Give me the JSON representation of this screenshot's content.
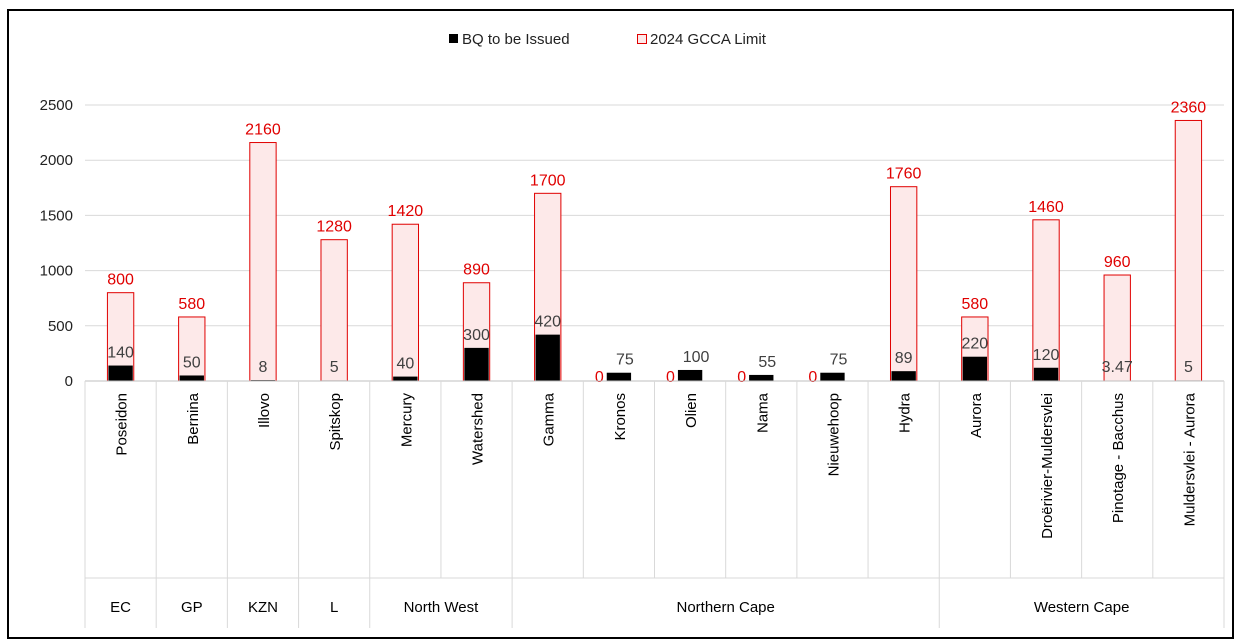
{
  "chart_data": {
    "type": "bar",
    "legend": {
      "position": "top-center",
      "entries": [
        "BQ to be Issued",
        "2024 GCCA  Limit"
      ]
    },
    "ylim": [
      0,
      2500
    ],
    "yticks": [
      "0",
      "500",
      "1000",
      "1500",
      "2000",
      "2500"
    ],
    "grid": true,
    "categories": [
      "Poseidon",
      "Bernina",
      "Illovo",
      "Spitskop",
      "Mercury",
      "Watershed",
      "Gamma",
      "Kronos",
      "Olien",
      "Nama",
      "Nieuwehoop",
      "Hydra",
      "Aurora",
      "Droërivier-Muldersvlei",
      "Pinotage - Bacchus",
      "Muldersvlei - Aurora"
    ],
    "groups": [
      {
        "label": "EC",
        "count": 1
      },
      {
        "label": "GP",
        "count": 1
      },
      {
        "label": "KZN",
        "count": 1
      },
      {
        "label": "L",
        "count": 1
      },
      {
        "label": "North West",
        "count": 2
      },
      {
        "label": "Northern Cape",
        "count": 6
      },
      {
        "label": "Western Cape",
        "count": 4
      }
    ],
    "series": [
      {
        "name": "BQ to be Issued",
        "color": "#000000",
        "values": [
          140,
          50,
          8,
          5,
          40,
          300,
          420,
          75,
          100,
          55,
          75,
          89,
          220,
          120,
          3.47,
          5
        ],
        "labels": [
          "140",
          "50",
          "8",
          "5",
          "40",
          "300",
          "420",
          "75",
          "100",
          "55",
          "75",
          "89",
          "220",
          "120",
          "3.47",
          "5"
        ]
      },
      {
        "name": "2024 GCCA  Limit",
        "color": "#e00000",
        "fill": "#fde9e9",
        "values": [
          800,
          580,
          2160,
          1280,
          1420,
          890,
          1700,
          0,
          0,
          0,
          0,
          1760,
          580,
          1460,
          960,
          2360
        ],
        "labels": [
          "800",
          "580",
          "2160",
          "1280",
          "1420",
          "890",
          "1700",
          "0",
          "0",
          "0",
          "0",
          "1760",
          "580",
          "1460",
          "960",
          "2360"
        ]
      }
    ]
  }
}
